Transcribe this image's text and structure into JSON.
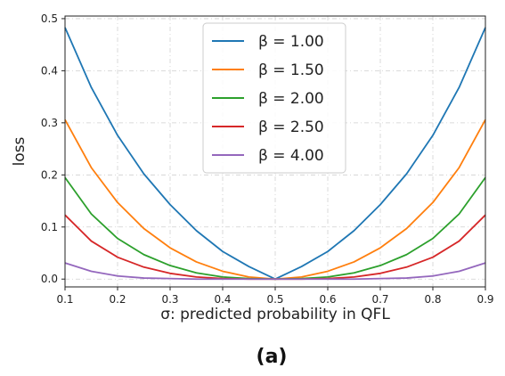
{
  "chart_data": {
    "type": "line",
    "title": "",
    "xlabel": "σ: predicted probability in QFL",
    "ylabel": "loss",
    "xlim": [
      0.1,
      0.9
    ],
    "ylim": [
      -0.015,
      0.505
    ],
    "x_ticks": [
      "0.1",
      "0.2",
      "0.3",
      "0.4",
      "0.5",
      "0.6",
      "0.7",
      "0.8",
      "0.9"
    ],
    "y_ticks": [
      "0.0",
      "0.1",
      "0.2",
      "0.3",
      "0.4",
      "0.5"
    ],
    "x": [
      0.1,
      0.15,
      0.2,
      0.25,
      0.3,
      0.35,
      0.4,
      0.45,
      0.5,
      0.55,
      0.6,
      0.65,
      0.7,
      0.75,
      0.8,
      0.85,
      0.9
    ],
    "series": [
      {
        "name": "β = 1.00",
        "color": "#1f77b4",
        "values": [
          0.483,
          0.368,
          0.276,
          0.202,
          0.143,
          0.093,
          0.053,
          0.024,
          0.0,
          0.024,
          0.053,
          0.093,
          0.143,
          0.202,
          0.276,
          0.368,
          0.483
        ]
      },
      {
        "name": "β = 1.50",
        "color": "#ff7f0e",
        "values": [
          0.306,
          0.214,
          0.147,
          0.097,
          0.06,
          0.033,
          0.015,
          0.004,
          0.0,
          0.004,
          0.015,
          0.033,
          0.06,
          0.097,
          0.147,
          0.214,
          0.306
        ]
      },
      {
        "name": "β = 2.00",
        "color": "#2ca02c",
        "values": [
          0.195,
          0.125,
          0.078,
          0.047,
          0.026,
          0.012,
          0.004,
          0.001,
          0.0,
          0.001,
          0.004,
          0.012,
          0.026,
          0.047,
          0.078,
          0.125,
          0.195
        ]
      },
      {
        "name": "β = 2.50",
        "color": "#d62728",
        "values": [
          0.123,
          0.073,
          0.042,
          0.023,
          0.011,
          0.004,
          0.001,
          0.0,
          0.0,
          0.0,
          0.001,
          0.004,
          0.011,
          0.023,
          0.042,
          0.073,
          0.123
        ]
      },
      {
        "name": "β = 4.00",
        "color": "#9467bd",
        "values": [
          0.031,
          0.015,
          0.006,
          0.002,
          0.001,
          0.0,
          0.0,
          0.0,
          0.0,
          0.0,
          0.0,
          0.0,
          0.001,
          0.002,
          0.006,
          0.015,
          0.031
        ]
      }
    ],
    "grid": true,
    "legend_position": "top-center",
    "caption": "(a)"
  }
}
